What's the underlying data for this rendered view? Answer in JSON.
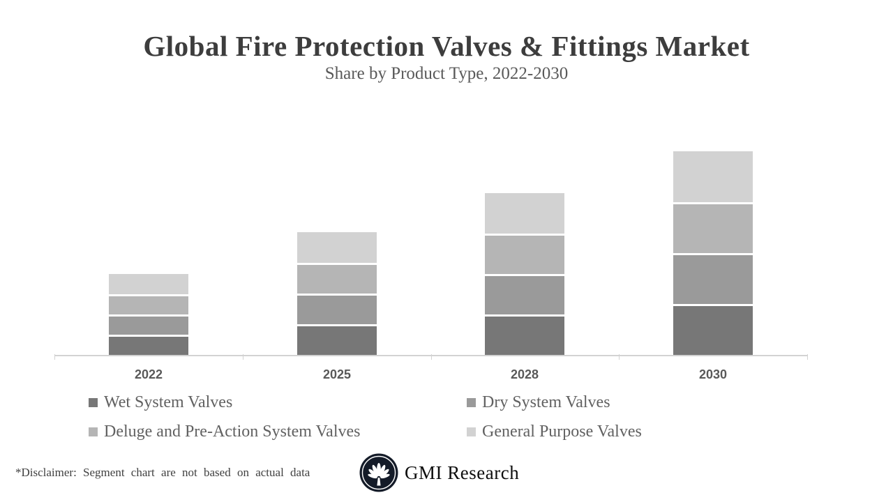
{
  "header": {
    "title": "Global Fire Protection Valves & Fittings Market",
    "subtitle": "Share by Product Type, 2022-2030"
  },
  "chart_data": {
    "type": "bar",
    "stacked": true,
    "grid": false,
    "y_axis_visible": false,
    "legend_position": "bottom",
    "categories": [
      "2022",
      "2025",
      "2028",
      "2030"
    ],
    "series": [
      {
        "name": "Wet System Valves",
        "color": "#777777",
        "values": [
          0.5,
          0.75,
          1.0,
          1.25
        ]
      },
      {
        "name": "Dry System Valves",
        "color": "#9a9a9a",
        "values": [
          0.5,
          0.75,
          1.0,
          1.25
        ]
      },
      {
        "name": "Deluge and Pre-Action System Valves",
        "color": "#b5b5b5",
        "values": [
          0.5,
          0.75,
          1.0,
          1.25
        ]
      },
      {
        "name": "General Purpose Valves",
        "color": "#d2d2d2",
        "values": [
          0.5,
          0.75,
          1.0,
          1.25
        ]
      }
    ],
    "totals": [
      2,
      3,
      4,
      5
    ],
    "ylim": [
      0,
      5
    ],
    "units": "relative share (axis unlabeled)"
  },
  "footer": {
    "disclaimer": "*Disclaimer:  Segment chart are not based on actual data",
    "brand": "GMI Research",
    "logo_icon": "palm-fan-icon"
  },
  "colors": {
    "axis": "#d2d2d2",
    "title_text": "#3d3d3d",
    "subtitle_text": "#595959",
    "legend_text": "#616161",
    "logo_circle": "#141b28"
  }
}
